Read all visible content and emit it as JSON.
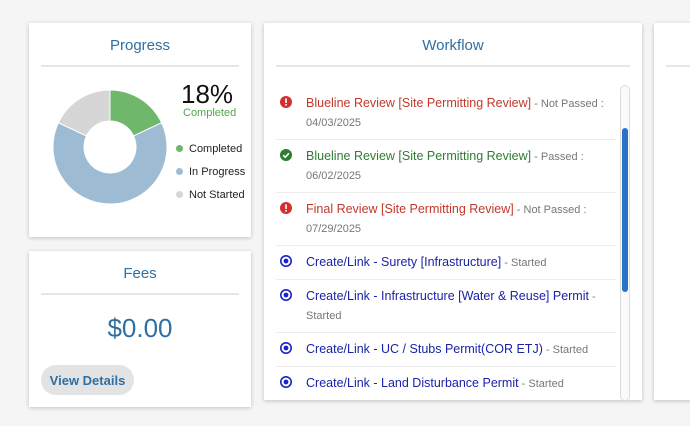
{
  "progress": {
    "title": "Progress",
    "percent_text": "18%",
    "percent_label": "Completed",
    "segments": [
      {
        "name": "Completed",
        "fraction": 0.18,
        "color": "#6fb76a"
      },
      {
        "name": "In Progress",
        "fraction": 0.64,
        "color": "#9dbcd4"
      },
      {
        "name": "Not Started",
        "fraction": 0.18,
        "color": "#d6d6d6"
      }
    ],
    "legend": [
      {
        "label": "Completed",
        "color": "#6fb76a"
      },
      {
        "label": "In Progress",
        "color": "#9dbcd4"
      },
      {
        "label": "Not Started",
        "color": "#d6d6d6"
      }
    ]
  },
  "fees": {
    "title": "Fees",
    "amount": "$0.00",
    "view_details_label": "View Details"
  },
  "workflow": {
    "title": "Workflow",
    "items": [
      {
        "icon": "alert-icon",
        "color": "#d32f2f",
        "link_class": "c-red",
        "title": "Blueline Review [Site Permitting Review]",
        "status": " - Not Passed : 04/03/2025"
      },
      {
        "icon": "check-circle-icon",
        "color": "#2e7d32",
        "link_class": "c-green",
        "title": "Blueline Review [Site Permitting Review]",
        "status": " - Passed : 06/02/2025"
      },
      {
        "icon": "alert-icon",
        "color": "#d32f2f",
        "link_class": "c-red",
        "title": "Final Review [Site Permitting Review]",
        "status": " - Not Passed : 07/29/2025"
      },
      {
        "icon": "radio-dot-icon",
        "color": "#1a23c8",
        "link_class": "c-blue",
        "title": "Create/Link - Surety [Infrastructure]",
        "status": " - Started"
      },
      {
        "icon": "radio-dot-icon",
        "color": "#1a23c8",
        "link_class": "c-blue",
        "title": "Create/Link - Infrastructure [Water & Reuse] Permit",
        "status": " - Started"
      },
      {
        "icon": "radio-dot-icon",
        "color": "#1a23c8",
        "link_class": "c-blue",
        "title": "Create/Link - UC / Stubs Permit(COR ETJ)",
        "status": " - Started"
      },
      {
        "icon": "radio-dot-icon",
        "color": "#1a23c8",
        "link_class": "c-blue",
        "title": "Create/Link - Land Disturbance Permit",
        "status": " - Started"
      }
    ]
  }
}
